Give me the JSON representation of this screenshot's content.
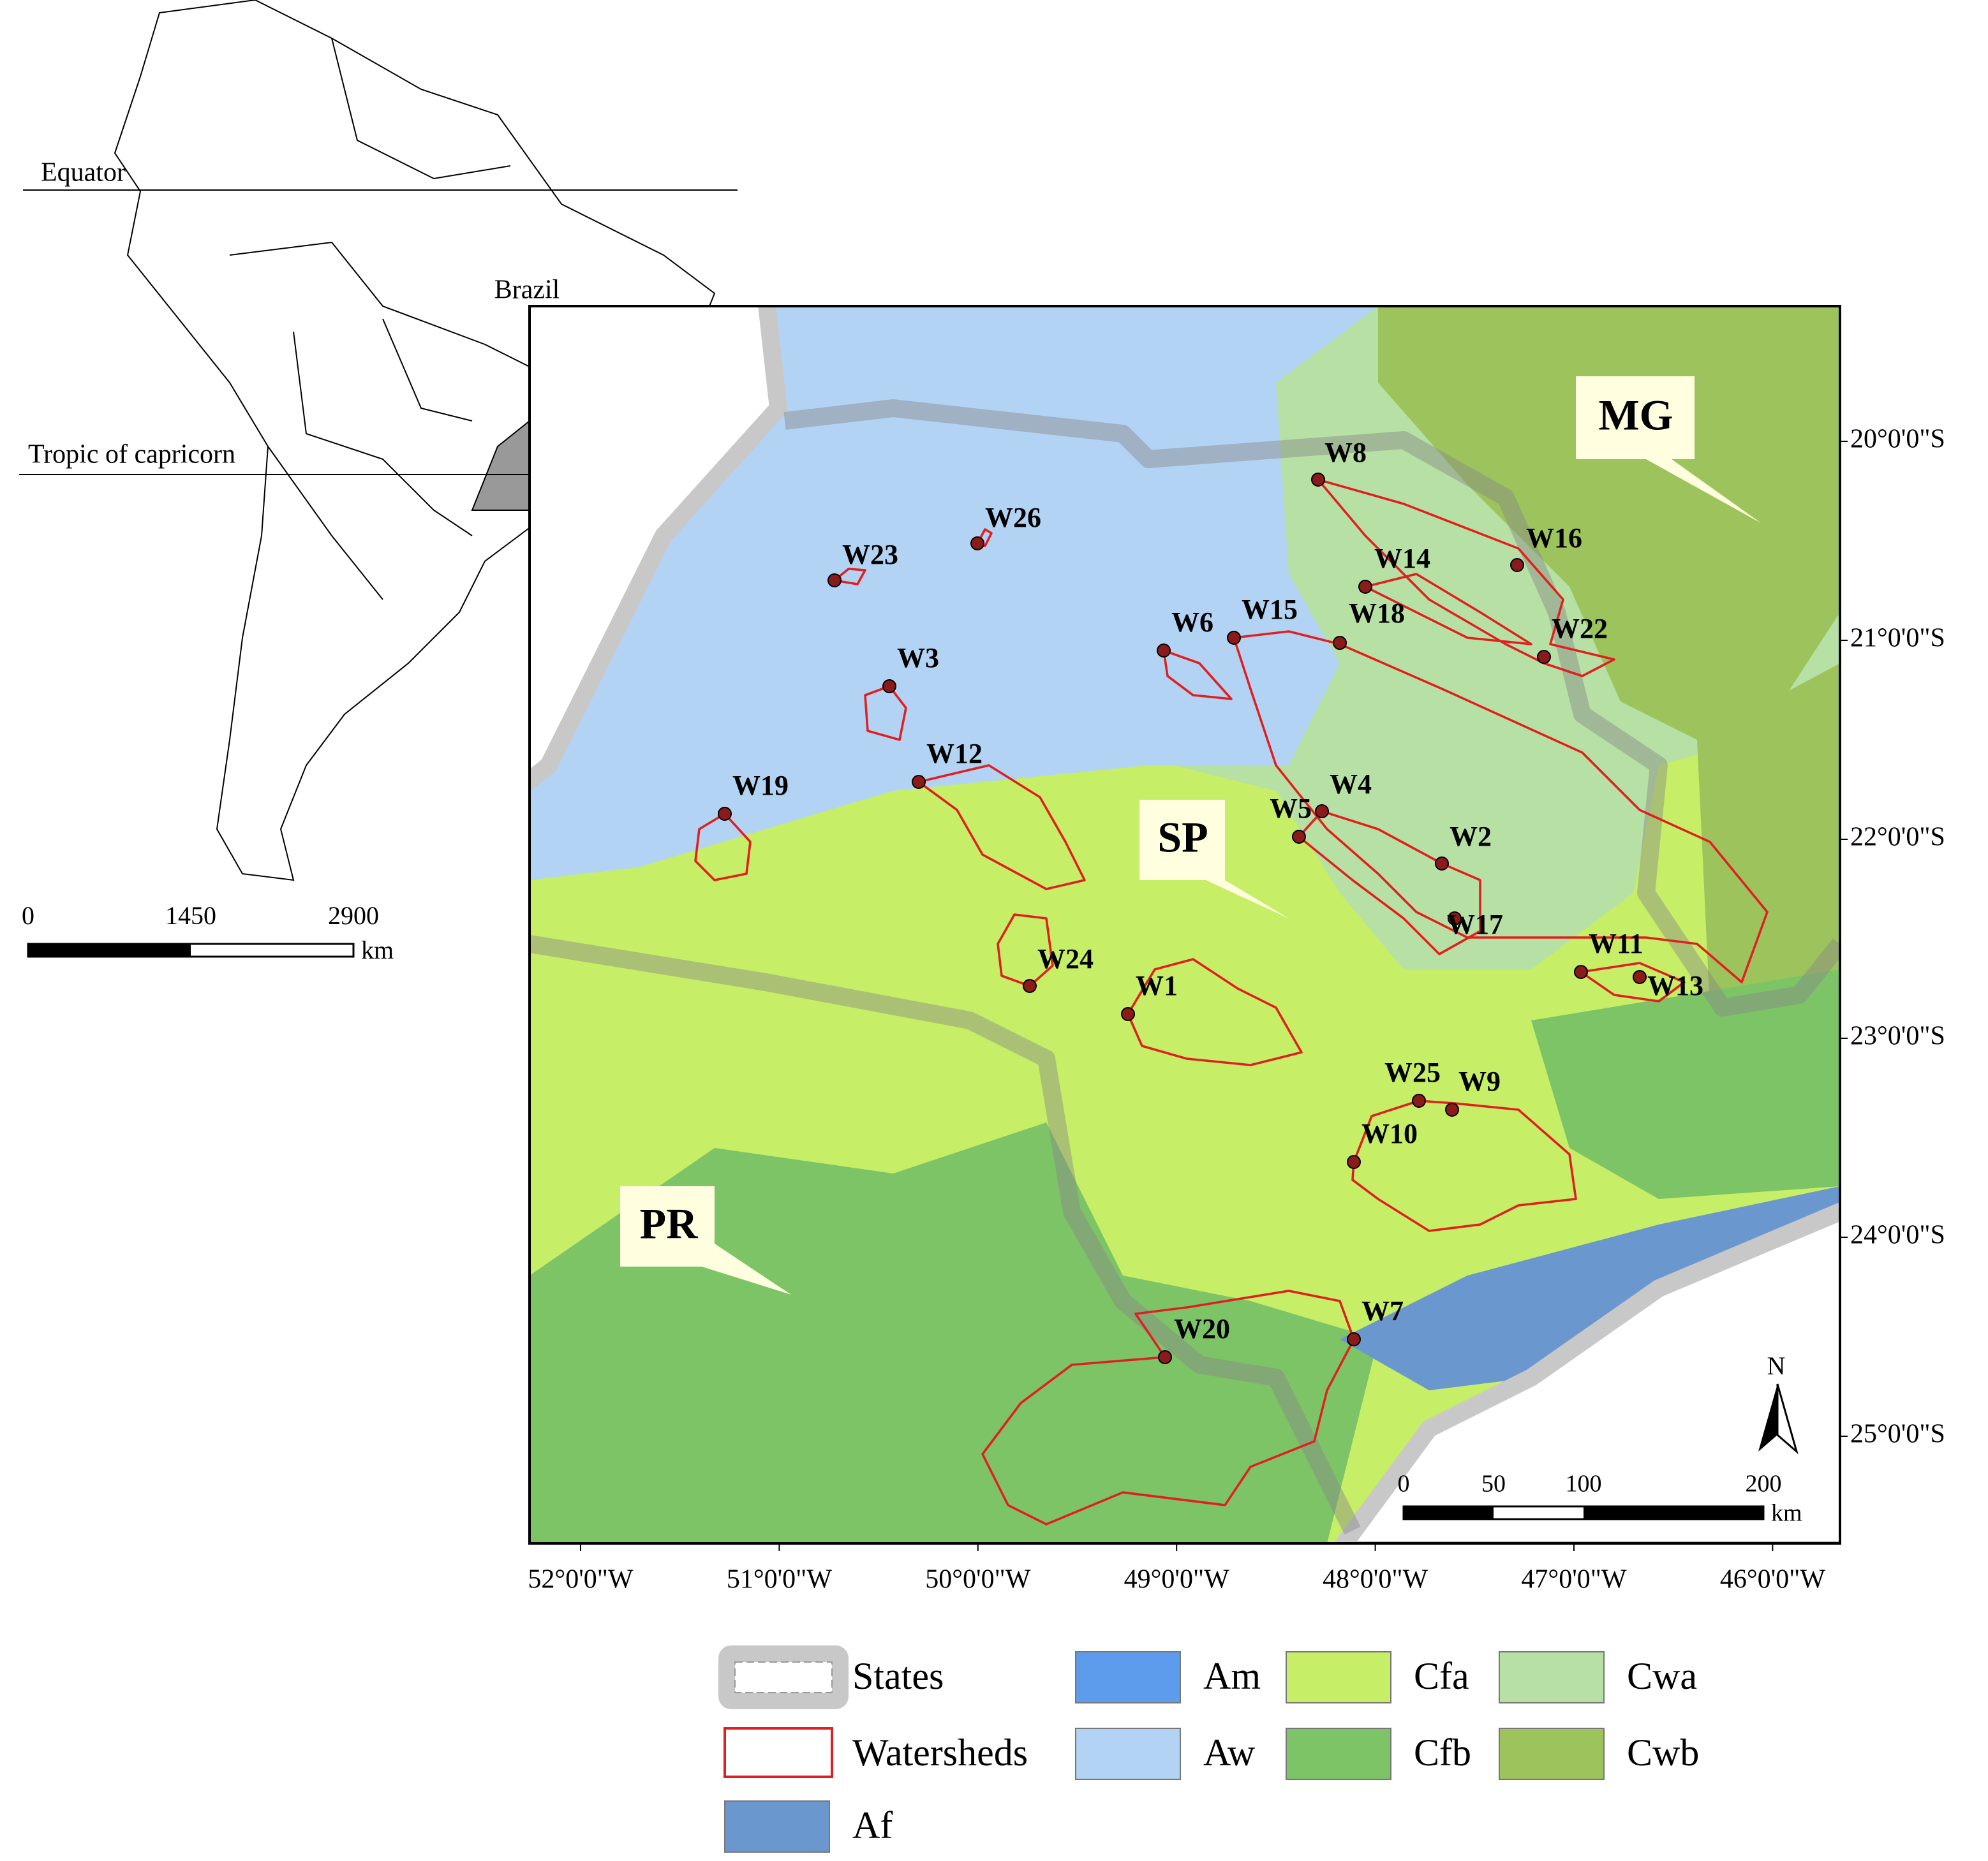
{
  "inset": {
    "equator": "Equator",
    "tropic": "Tropic of capricorn",
    "country": "Brazil",
    "scale": {
      "ticks": [
        0,
        1450,
        2900
      ],
      "unit": "km"
    }
  },
  "map": {
    "states": [
      "MG",
      "SP",
      "PR"
    ],
    "watersheds": [
      "W8",
      "W26",
      "W16",
      "W23",
      "W14",
      "W6",
      "W15",
      "W18",
      "W22",
      "W3",
      "W12",
      "W19",
      "W4",
      "W5",
      "W2",
      "W17",
      "W11",
      "W13",
      "W24",
      "W1",
      "W25",
      "W9",
      "W10",
      "W7",
      "W20"
    ],
    "lat_ticks": [
      "20°0'0\"S",
      "21°0'0\"S",
      "22°0'0\"S",
      "23°0'0\"S",
      "24°0'0\"S",
      "25°0'0\"S"
    ],
    "lon_ticks": [
      "52°0'0\"W",
      "51°0'0\"W",
      "50°0'0\"W",
      "49°0'0\"W",
      "48°0'0\"W",
      "47°0'0\"W",
      "46°0'0\"W"
    ],
    "north": "N",
    "scale": {
      "ticks": [
        0,
        50,
        100,
        200
      ],
      "unit": "km"
    }
  },
  "legend": [
    {
      "label": "States",
      "color": "#c8c8c8"
    },
    {
      "label": "Watersheds",
      "color": "#e02020"
    },
    {
      "label": "Af",
      "color": "#6b97cf"
    },
    {
      "label": "Am",
      "color": "#5d9cec"
    },
    {
      "label": "Aw",
      "color": "#b3d3f5"
    },
    {
      "label": "Cfa",
      "color": "#c6ee66"
    },
    {
      "label": "Cfb",
      "color": "#7dc467"
    },
    {
      "label": "Cwa",
      "color": "#b7e0a5"
    },
    {
      "label": "Cwb",
      "color": "#9dc45c"
    }
  ]
}
